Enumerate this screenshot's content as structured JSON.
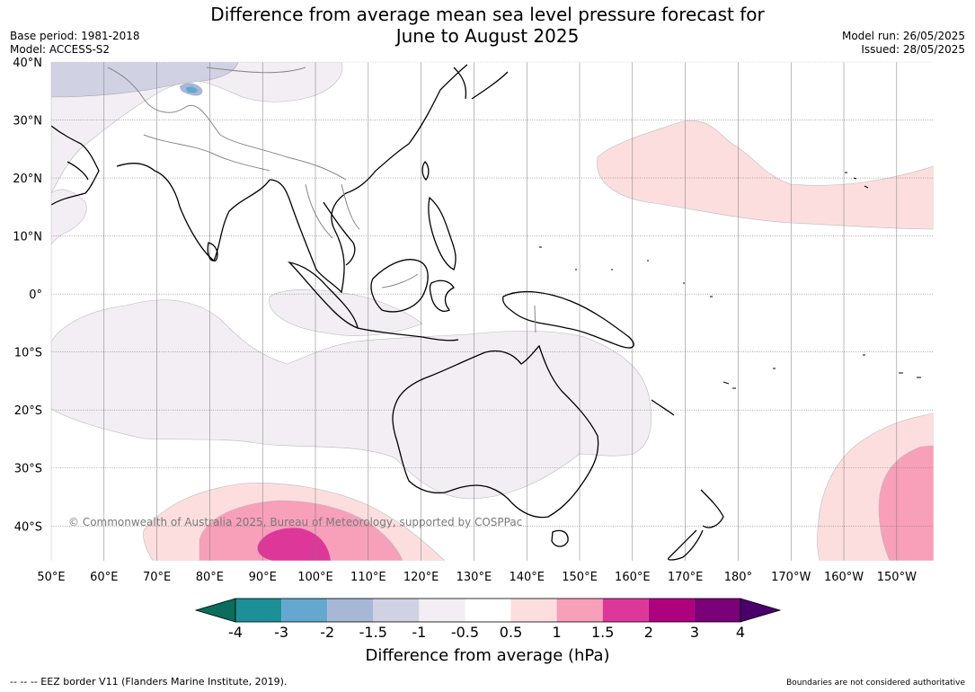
{
  "header": {
    "title_line1": "Difference from average mean sea level pressure forecast for",
    "title_line2": "June to August 2025",
    "base_period": "Base period: 1981-2018",
    "model": "Model: ACCESS-S2",
    "model_run": "Model run: 26/05/2025",
    "issued": "Issued: 28/05/2025"
  },
  "map": {
    "projection": "equirectangular",
    "lon_range": [
      50,
      217
    ],
    "lat_range": [
      -46,
      40
    ],
    "lat_labels": [
      "40°N",
      "30°N",
      "20°N",
      "10°N",
      "0°",
      "10°S",
      "20°S",
      "30°S",
      "40°S"
    ],
    "lon_labels": [
      "50°E",
      "60°E",
      "70°E",
      "80°E",
      "90°E",
      "100°E",
      "110°E",
      "120°E",
      "130°E",
      "140°E",
      "150°E",
      "160°E",
      "170°E",
      "180°",
      "170°W",
      "160°W",
      "150°W"
    ],
    "copyright": "© Commonwealth of Australia 2025, Bureau of Meteorology, supported by COSPPac",
    "land_outline_color": "#000000",
    "border_color": "#888888",
    "graticule_color": "#777777"
  },
  "colorbar": {
    "title": "Difference from average (hPa)",
    "labels": [
      "-4",
      "-3",
      "-2",
      "-1.5",
      "-1",
      "-0.5",
      "0.5",
      "1",
      "1.5",
      "2",
      "3",
      "4"
    ],
    "colors": [
      "#1b9096",
      "#64a8cf",
      "#a7b7d6",
      "#d0d1e3",
      "#f2eef4",
      "#ffffff",
      "#fddede",
      "#f89fba",
      "#dd3899",
      "#ae017e",
      "#7a0177"
    ],
    "under_color": "#0c6d5c",
    "over_color": "#49006a"
  },
  "footer": {
    "eez": "--  --  -- EEZ border V11 (Flanders Marine Institute, 2019).",
    "disclaimer": "Boundaries are not considered authoritative"
  }
}
